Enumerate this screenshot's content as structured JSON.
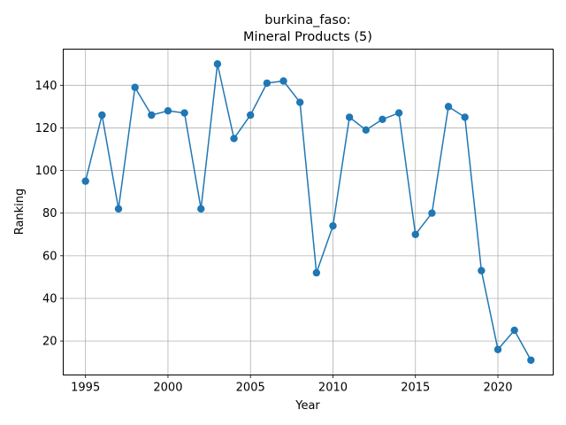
{
  "chart_data": {
    "type": "line",
    "title_line1": "burkina_faso:",
    "title_line2": "Mineral Products (5)",
    "xlabel": "Year",
    "ylabel": "Ranking",
    "xlim": [
      1993.65,
      1995.0
    ],
    "xticks": [
      1995,
      2000,
      2005,
      2010,
      2015,
      2020
    ],
    "yticks": [
      20,
      40,
      60,
      80,
      100,
      120,
      140
    ],
    "grid": true,
    "color": "#1f77b4",
    "x": [
      1995,
      1996,
      1997,
      1998,
      1999,
      2000,
      2001,
      2002,
      2003,
      2004,
      2005,
      2006,
      2007,
      2008,
      2009,
      2010,
      2011,
      2012,
      2013,
      2014,
      2015,
      2016,
      2017,
      2018,
      2019,
      2020,
      2021,
      2022
    ],
    "y": [
      95,
      126,
      82,
      139,
      126,
      128,
      127,
      82,
      150,
      115,
      126,
      141,
      142,
      132,
      52,
      74,
      125,
      119,
      124,
      127,
      70,
      80,
      130,
      125,
      53,
      16,
      25,
      11
    ]
  }
}
